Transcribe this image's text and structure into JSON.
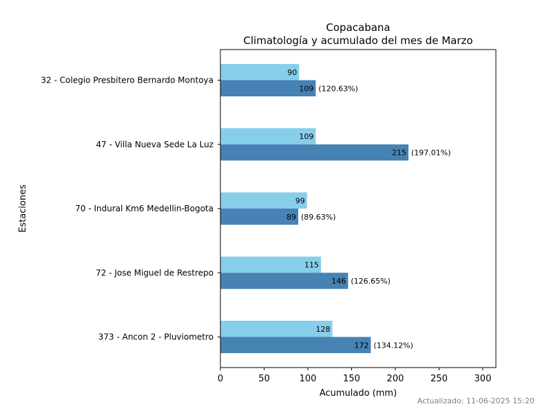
{
  "chart_data": {
    "type": "bar",
    "orientation": "horizontal",
    "title": "Copacabana",
    "subtitle": "Climatología y acumulado del mes de Marzo",
    "xlabel": "Acumulado (mm)",
    "ylabel": "Estaciones",
    "xlim": [
      0,
      315
    ],
    "xticks": [
      0,
      50,
      100,
      150,
      200,
      250,
      300
    ],
    "grid": false,
    "categories": [
      "32 - Colegio Presbitero Bernardo Montoya",
      "47 - Villa Nueva Sede La Luz",
      "70 - Indural Km6 Medellin-Bogota",
      "72 - Jose Miguel de Restrepo",
      "373 - Ancon 2 - Pluviometro"
    ],
    "series": [
      {
        "values": [
          90,
          109,
          99,
          115,
          128
        ],
        "color": "#87CEEB"
      },
      {
        "values": [
          109,
          215,
          89,
          146,
          172
        ],
        "color": "#4682B4",
        "annotations": [
          "(120.63%)",
          "(197.01%)",
          "(89.63%)",
          "(126.65%)",
          "(134.12%)"
        ]
      }
    ]
  },
  "footer": "Actualizado: 11-06-2025 15:20"
}
